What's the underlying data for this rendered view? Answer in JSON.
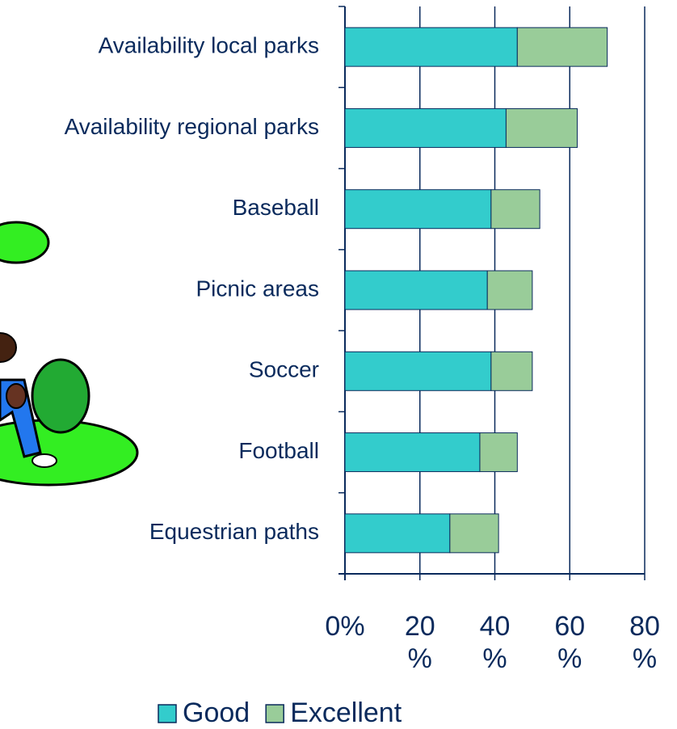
{
  "chart_data": {
    "type": "bar",
    "orientation": "horizontal",
    "stacked": true,
    "categories": [
      "Availability local parks",
      "Availability regional parks",
      "Baseball",
      "Picnic areas",
      "Soccer",
      "Football",
      "Equestrian paths"
    ],
    "series": [
      {
        "name": "Good",
        "color": "#33cccc",
        "values": [
          46,
          43,
          39,
          38,
          39,
          36,
          28
        ]
      },
      {
        "name": "Excellent",
        "color": "#99cc99",
        "values": [
          24,
          19,
          13,
          12,
          11,
          10,
          13
        ]
      }
    ],
    "xlim": [
      0,
      80
    ],
    "xticks": [
      {
        "value": 0,
        "label": "0%"
      },
      {
        "value": 20,
        "label": "20 %"
      },
      {
        "value": 40,
        "label": "40 %"
      },
      {
        "value": 60,
        "label": "60 %"
      },
      {
        "value": 80,
        "label": "80 %"
      }
    ],
    "grid": true
  }
}
